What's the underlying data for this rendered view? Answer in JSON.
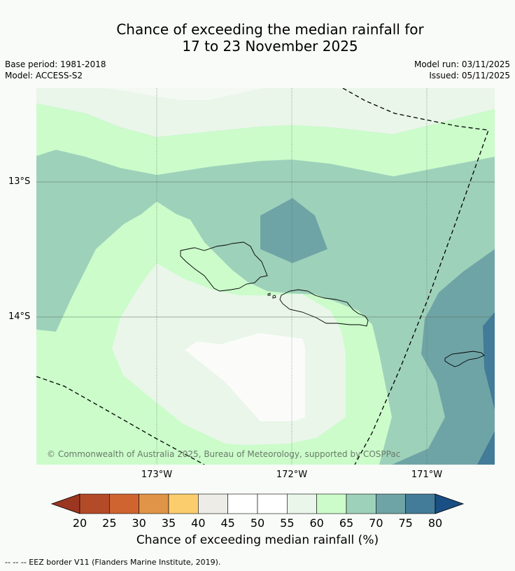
{
  "title": {
    "line1": "Chance of exceeding the median rainfall for",
    "line2": "17 to 23 November 2025"
  },
  "meta": {
    "base_period": "Base period: 1981-2018",
    "model": "Model: ACCESS-S2",
    "model_run": "Model run: 03/11/2025",
    "issued": "Issued: 05/11/2025"
  },
  "map": {
    "lat_labels": [
      "13°S",
      "14°S"
    ],
    "lon_labels": [
      "173°W",
      "172°W",
      "171°W"
    ],
    "credit": "© Commonwealth of Australia 2025, Bureau of Meteorology, supported by COSPPac"
  },
  "colorbar": {
    "ticks": [
      "20",
      "25",
      "30",
      "35",
      "40",
      "45",
      "50",
      "55",
      "60",
      "65",
      "70",
      "75",
      "80"
    ],
    "label": "Chance of exceeding median rainfall (%)",
    "under_color": "#9b3620",
    "over_color": "#1a4f84",
    "colors": [
      "#b34a28",
      "#cf6430",
      "#e09447",
      "#fccd6c",
      "#edece6",
      "#ffffff",
      "#ffffff",
      "#e9f6e9",
      "#cbfcca",
      "#9ed1ba",
      "#6fa4a6",
      "#437c98"
    ]
  },
  "footer": "--  --  -- EEZ border V11 (Flanders Marine Institute, 2019)."
}
